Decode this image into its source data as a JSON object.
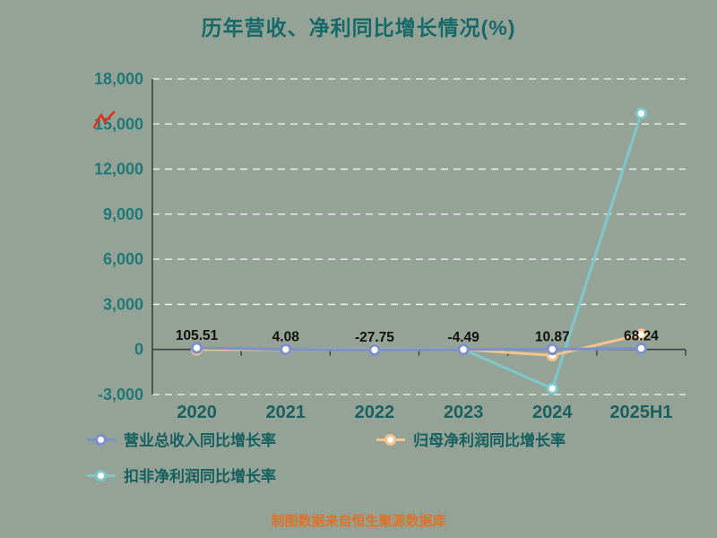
{
  "page": {
    "background": "#95a397"
  },
  "chart_data": {
    "type": "line",
    "title": "历年营收、净利同比增长情况(%)",
    "categories": [
      "2020",
      "2021",
      "2022",
      "2023",
      "2024",
      "2025H1"
    ],
    "ylim": [
      -3000,
      18000
    ],
    "y_tick_step": 3000,
    "y_tick_labels": [
      "-3,000",
      "0",
      "3,000",
      "6,000",
      "9,000",
      "12,000",
      "15,000",
      "18,000"
    ],
    "grid": "horizontal-dashed-white",
    "legend_position": "bottom",
    "series": [
      {
        "name": "营业总收入同比增长率",
        "color": "#7b8fc9",
        "values": [
          105.51,
          4.08,
          -27.75,
          -4.49,
          10.87,
          68.24
        ],
        "labels": [
          "105.51",
          "4.08",
          "-27.75",
          "-4.49",
          "10.87",
          "68.24"
        ],
        "show_labels": true
      },
      {
        "name": "归母净利润同比增长率",
        "color": "#f3c48e",
        "values": [
          0,
          0,
          0,
          0,
          -400,
          1000
        ],
        "values_estimated": true,
        "show_labels": false
      },
      {
        "name": "扣非净利润同比增长率",
        "color": "#7ec8cd",
        "values": [
          0,
          0,
          0,
          0,
          -2600,
          15700
        ],
        "values_estimated": true,
        "show_labels": false
      }
    ],
    "label_color": "#111111",
    "axis_tick_color": "#227777",
    "x_label_color": "#19605f",
    "annotation": {
      "name": "red-pen-mark",
      "color": "#e03020",
      "near_tick": "15,000"
    }
  },
  "footer": {
    "text": "制图数据来自恒生聚源数据库",
    "color": "#de7227"
  }
}
